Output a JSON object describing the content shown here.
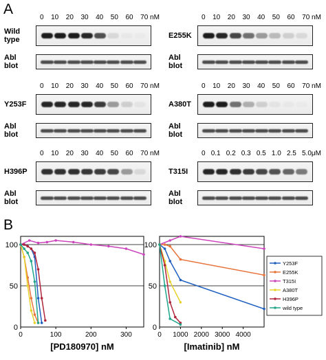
{
  "panel_a": {
    "letter": "A",
    "conc_std": [
      "0",
      "10",
      "20",
      "30",
      "40",
      "50",
      "60",
      "70"
    ],
    "unit": "nM",
    "conc_t315i": [
      "0",
      "0.1",
      "0.2",
      "0.3",
      "0.5",
      "1.0",
      "2.5",
      "5.0"
    ],
    "unit_t315i": "μM",
    "blot_label_1": "Abl",
    "blot_label_2": "blot",
    "mutants": [
      {
        "line1": "Wild",
        "line2": "type",
        "intensity": [
          1,
          1,
          1,
          0.95,
          0.75,
          0.1,
          0.03,
          0.02
        ]
      },
      {
        "line1": "E255K",
        "line2": "",
        "intensity": [
          1,
          0.95,
          0.8,
          0.6,
          0.4,
          0.25,
          0.15,
          0.1
        ]
      },
      {
        "line1": "Y253F",
        "line2": "",
        "intensity": [
          0.95,
          0.95,
          0.95,
          0.95,
          0.85,
          0.4,
          0.15,
          0.05
        ]
      },
      {
        "line1": "A380T",
        "line2": "",
        "intensity": [
          1,
          1,
          0.6,
          0.3,
          0.15,
          0.05,
          0.03,
          0.02
        ]
      },
      {
        "line1": "H396P",
        "line2": "",
        "intensity": [
          0.9,
          0.9,
          0.9,
          0.88,
          0.85,
          0.8,
          0.4,
          0.1
        ]
      },
      {
        "line1": "T315I",
        "line2": "",
        "intensity": [
          0.95,
          0.95,
          0.9,
          0.85,
          0.8,
          0.75,
          0.65,
          0.55
        ]
      }
    ]
  },
  "panel_b": {
    "letter": "B"
  },
  "chart_data": [
    {
      "type": "line",
      "xlabel": "[PD180970] nM",
      "ylabel": "",
      "xlim": [
        0,
        350
      ],
      "ylim": [
        0,
        110
      ],
      "xticks": [
        0,
        100,
        200,
        300
      ],
      "yticks": [
        0,
        50,
        100
      ],
      "series": [
        {
          "name": "Y253F",
          "color": "#1f5fbf",
          "x": [
            0,
            10,
            20,
            30,
            40,
            50,
            60
          ],
          "y": [
            100,
            100,
            98,
            95,
            85,
            35,
            5
          ]
        },
        {
          "name": "E255K",
          "color": "#e8733a",
          "x": [
            0,
            10,
            20,
            30,
            40,
            50
          ],
          "y": [
            100,
            85,
            60,
            35,
            15,
            5
          ]
        },
        {
          "name": "T315I",
          "color": "#cc44bb",
          "x": [
            0,
            25,
            50,
            75,
            100,
            150,
            200,
            250,
            300,
            350
          ],
          "y": [
            100,
            105,
            102,
            103,
            105,
            103,
            100,
            98,
            95,
            88
          ]
        },
        {
          "name": "A380T",
          "color": "#e6d22a",
          "x": [
            0,
            10,
            20,
            30,
            40
          ],
          "y": [
            100,
            85,
            50,
            20,
            5
          ]
        },
        {
          "name": "H396P",
          "color": "#b0243a",
          "x": [
            0,
            10,
            20,
            30,
            40,
            50,
            60,
            70
          ],
          "y": [
            100,
            100,
            98,
            95,
            90,
            70,
            35,
            8
          ]
        },
        {
          "name": "wild type",
          "color": "#1fa58a",
          "x": [
            0,
            10,
            20,
            30,
            40,
            50
          ],
          "y": [
            100,
            95,
            90,
            80,
            55,
            5
          ]
        }
      ]
    },
    {
      "type": "line",
      "xlabel": "[Imatinib] nM",
      "ylabel": "",
      "xlim": [
        0,
        5000
      ],
      "ylim": [
        0,
        110
      ],
      "xticks": [
        0,
        1000,
        2000,
        3000,
        4000
      ],
      "yticks": [
        0,
        50,
        100
      ],
      "series": [
        {
          "name": "Y253F",
          "color": "#1f5fbf",
          "x": [
            0,
            250,
            500,
            1000,
            5000
          ],
          "y": [
            100,
            95,
            80,
            57,
            22
          ]
        },
        {
          "name": "E255K",
          "color": "#e8733a",
          "x": [
            0,
            250,
            500,
            1000,
            5000
          ],
          "y": [
            100,
            100,
            98,
            82,
            63
          ]
        },
        {
          "name": "T315I",
          "color": "#cc44bb",
          "x": [
            0,
            500,
            1000,
            5000
          ],
          "y": [
            100,
            105,
            110,
            95
          ]
        },
        {
          "name": "A380T",
          "color": "#e6d22a",
          "x": [
            0,
            250,
            500,
            1000
          ],
          "y": [
            100,
            80,
            55,
            30
          ]
        },
        {
          "name": "H396P",
          "color": "#b0243a",
          "x": [
            0,
            250,
            500,
            750,
            1000
          ],
          "y": [
            100,
            75,
            30,
            12,
            5
          ]
        },
        {
          "name": "wild type",
          "color": "#1fa58a",
          "x": [
            0,
            250,
            500,
            1000
          ],
          "y": [
            100,
            50,
            10,
            3
          ]
        }
      ]
    }
  ]
}
